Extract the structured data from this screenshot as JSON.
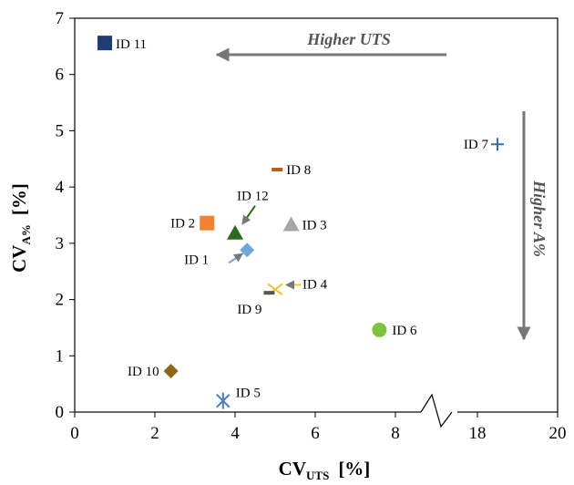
{
  "chart_data": {
    "type": "scatter",
    "title": "",
    "xlabel": {
      "main": "CV",
      "sub": "UTS",
      "unit": "[%]"
    },
    "ylabel": {
      "main": "CV",
      "sub": "A%",
      "unit": "[%]"
    },
    "xlim": [
      0,
      20
    ],
    "ylim": [
      0,
      7
    ],
    "axis_break": {
      "between": [
        8,
        18
      ]
    },
    "x_ticks": [
      "0",
      "2",
      "4",
      "6",
      "8",
      "18",
      "20"
    ],
    "y_ticks": [
      "0",
      "1",
      "2",
      "3",
      "4",
      "5",
      "6",
      "7"
    ],
    "grid": false,
    "annotations": [
      {
        "text": "Higher UTS",
        "direction": "left"
      },
      {
        "text": "Higher A%",
        "direction": "down"
      }
    ],
    "series": [
      {
        "name": "ID 1",
        "x": 4.3,
        "y": 2.88,
        "marker": "diamond",
        "color": "#6fa8dc"
      },
      {
        "name": "ID 2",
        "x": 3.3,
        "y": 3.36,
        "marker": "square",
        "color": "#f58231"
      },
      {
        "name": "ID 3",
        "x": 5.4,
        "y": 3.33,
        "marker": "triangle",
        "color": "#a6a6a6"
      },
      {
        "name": "ID 4",
        "x": 5.0,
        "y": 2.18,
        "marker": "x",
        "color": "#f1c232"
      },
      {
        "name": "ID 5",
        "x": 3.7,
        "y": 0.2,
        "marker": "star",
        "color": "#4a7ebb"
      },
      {
        "name": "ID 6",
        "x": 7.6,
        "y": 1.46,
        "marker": "circle",
        "color": "#7cc241"
      },
      {
        "name": "ID 7",
        "x": 18.5,
        "y": 4.76,
        "marker": "plus",
        "color": "#3c6fa8"
      },
      {
        "name": "ID 8",
        "x": 5.05,
        "y": 4.31,
        "marker": "dash",
        "color": "#b85e1e"
      },
      {
        "name": "ID 9",
        "x": 4.85,
        "y": 2.12,
        "marker": "dash",
        "color": "#555555"
      },
      {
        "name": "ID 10",
        "x": 2.4,
        "y": 0.73,
        "marker": "diamond",
        "color": "#8b6914"
      },
      {
        "name": "ID 11",
        "x": 0.75,
        "y": 6.56,
        "marker": "square",
        "color": "#1f3b73"
      },
      {
        "name": "ID 12",
        "x": 4.0,
        "y": 3.18,
        "marker": "triangle",
        "color": "#2e6b1e"
      }
    ]
  }
}
